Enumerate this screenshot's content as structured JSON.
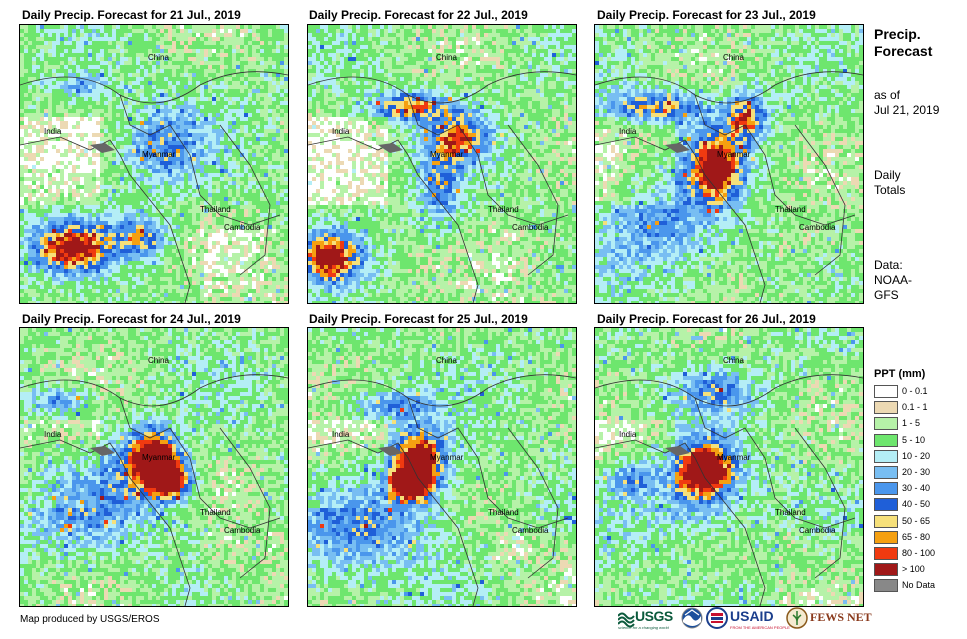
{
  "panels": [
    {
      "title": "Daily Precip. Forecast for 21 Jul., 2019"
    },
    {
      "title": "Daily Precip. Forecast for 22 Jul., 2019"
    },
    {
      "title": "Daily Precip. Forecast for 23 Jul., 2019"
    },
    {
      "title": "Daily Precip. Forecast for 24 Jul., 2019"
    },
    {
      "title": "Daily Precip. Forecast for 25 Jul., 2019"
    },
    {
      "title": "Daily Precip. Forecast for 26 Jul., 2019"
    }
  ],
  "countries": [
    "China",
    "India",
    "Myanmar",
    "Thailand",
    "Cambodia"
  ],
  "sidebar": {
    "title_line1": "Precip.",
    "title_line2": "Forecast",
    "asof_line1": "as of",
    "asof_line2": "Jul 21, 2019",
    "totals_line1": "Daily",
    "totals_line2": "Totals",
    "data_line1": "Data:",
    "data_line2": "NOAA-",
    "data_line3": "GFS"
  },
  "legend": {
    "title": "PPT (mm)",
    "items": [
      {
        "label": "0 - 0.1",
        "color": "#ffffff"
      },
      {
        "label": "0.1 - 1",
        "color": "#ecd9b3"
      },
      {
        "label": "1 - 5",
        "color": "#b6f2a8"
      },
      {
        "label": "5 - 10",
        "color": "#6ee66e"
      },
      {
        "label": "10 - 20",
        "color": "#b4eef6"
      },
      {
        "label": "20 - 30",
        "color": "#78bef2"
      },
      {
        "label": "30 - 40",
        "color": "#4a96ec"
      },
      {
        "label": "40 - 50",
        "color": "#1f5fd8"
      },
      {
        "label": "50 - 65",
        "color": "#f6e07a"
      },
      {
        "label": "65 - 80",
        "color": "#f5a011"
      },
      {
        "label": "80 - 100",
        "color": "#f03a10"
      },
      {
        "label": "> 100",
        "color": "#a01818"
      },
      {
        "label": "No Data",
        "color": "#888888"
      }
    ]
  },
  "footer": {
    "credit": "Map produced by USGS/EROS"
  },
  "logos": {
    "usgs": "USGS",
    "usgs_tagline": "science for a changing world",
    "usaid": "USAID",
    "usaid_tagline": "FROM THE AMERICAN PEOPLE",
    "fewsnet": "FEWS NET"
  }
}
